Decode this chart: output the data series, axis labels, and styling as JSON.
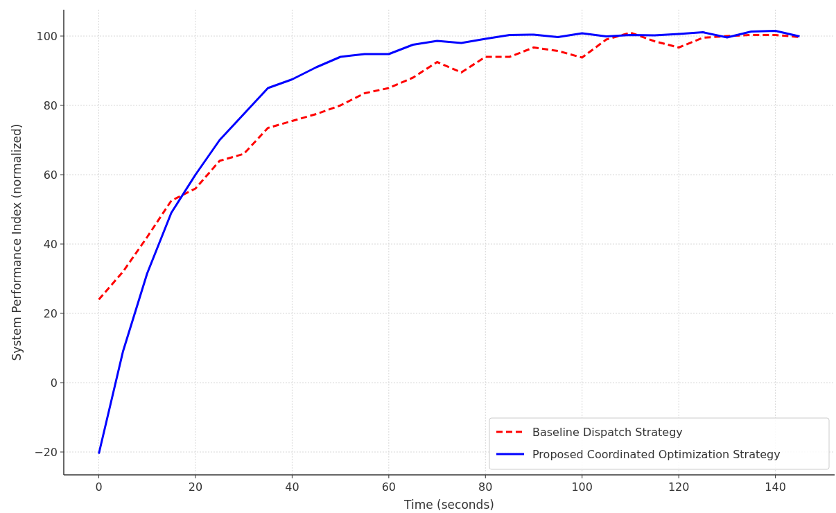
{
  "chart_data": {
    "type": "line",
    "xlabel": "Time (seconds)",
    "ylabel": "System Performance Index (normalized)",
    "x": [
      0,
      5,
      10,
      15,
      20,
      25,
      30,
      35,
      40,
      45,
      50,
      55,
      60,
      65,
      70,
      75,
      80,
      85,
      90,
      95,
      100,
      105,
      110,
      115,
      120,
      125,
      130,
      135,
      140,
      145
    ],
    "series": [
      {
        "name": "Baseline Dispatch Strategy",
        "color": "#ff0000",
        "line_style": "dashed",
        "values": [
          24,
          32,
          42,
          52.5,
          56,
          64,
          66,
          73.5,
          75.5,
          77.5,
          80,
          83.5,
          85,
          88,
          92.5,
          89.5,
          94,
          94,
          96.7,
          95.7,
          93.8,
          99,
          101,
          98.5,
          96.7,
          99.5,
          100,
          100.3,
          100.3,
          99.7
        ]
      },
      {
        "name": "Proposed Coordinated Optimization Strategy",
        "color": "#0000ff",
        "line_style": "solid",
        "values": [
          -20.5,
          9,
          31.5,
          49,
          60,
          70,
          77.5,
          85,
          87.5,
          91,
          94,
          94.8,
          94.8,
          97.5,
          98.6,
          98,
          99.2,
          100.3,
          100.4,
          99.7,
          100.8,
          99.9,
          100.3,
          100.2,
          100.6,
          101.1,
          99.6,
          101.3,
          101.5,
          99.9
        ]
      }
    ],
    "xlim": [
      -7.25,
      152.25
    ],
    "xticks": [
      0,
      20,
      40,
      60,
      80,
      100,
      120,
      140
    ],
    "ylim": [
      -26.6,
      107.6
    ],
    "yticks": [
      {
        "value": -20,
        "label": "−20"
      },
      0,
      20,
      40,
      60,
      80,
      100
    ],
    "grid": true,
    "legend": "bottom right"
  }
}
